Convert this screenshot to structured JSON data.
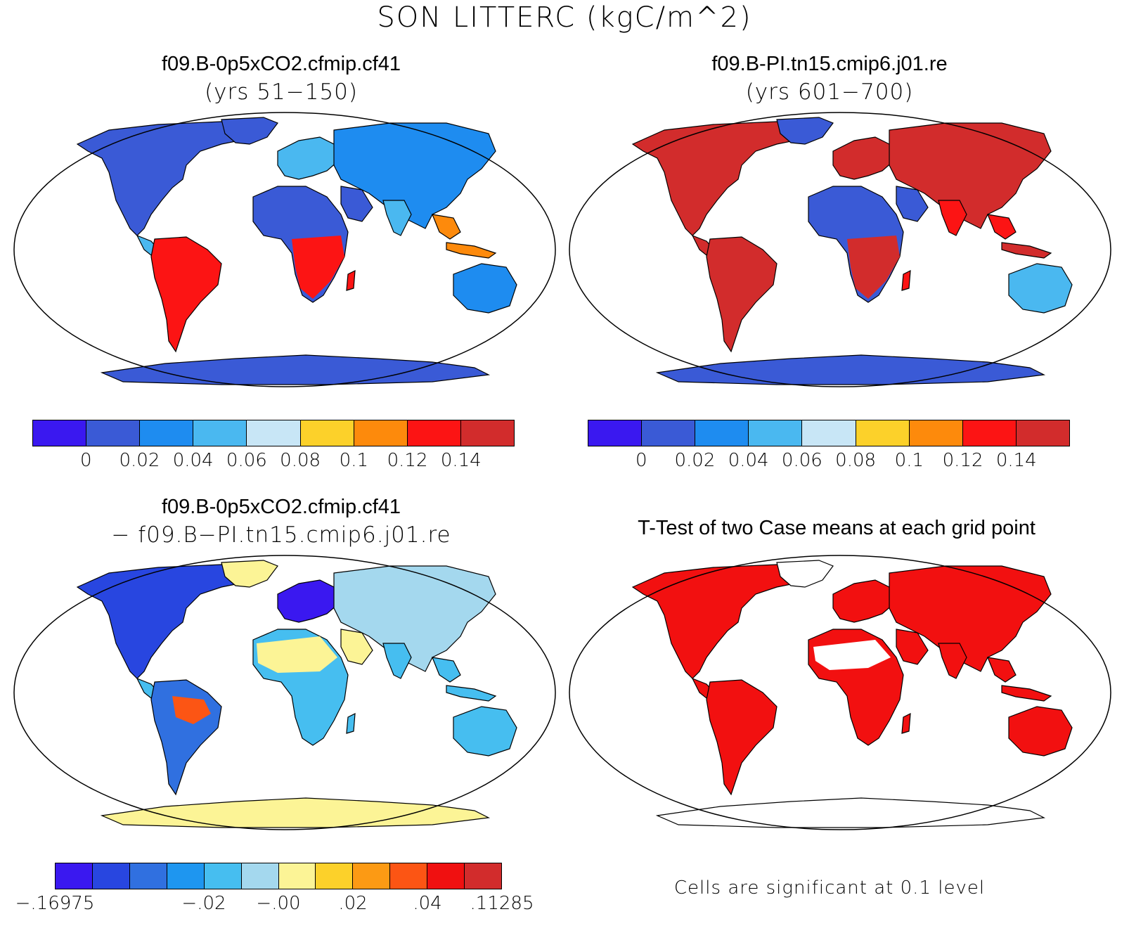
{
  "figure_title": "SON LITTERC (kgC/m^2)",
  "panels": {
    "top_left": {
      "title": "f09.B-0p5xCO2.cfmip.cf41",
      "subtitle": "(yrs 51−150)"
    },
    "top_right": {
      "title": "f09.B-PI.tn15.cmip6.j01.re",
      "subtitle": "(yrs 601−700)"
    },
    "bottom_left": {
      "title": "f09.B-0p5xCO2.cfmip.cf41",
      "subtitle": "− f09.B−PI.tn15.cmip6.j01.re"
    },
    "bottom_right": {
      "title": "T-Test of two Case means at each grid point",
      "footnote": "Cells are significant at 0.1 level"
    }
  },
  "colorbars": {
    "absolute": {
      "colors": [
        "#3a18f0",
        "#3a5ad6",
        "#1e8cf0",
        "#4ab8f0",
        "#c8e6f6",
        "#fcd12a",
        "#fd8a0c",
        "#fc1414",
        "#d22c2c"
      ],
      "labels": [
        "0",
        "0.02",
        "0.04",
        "0.06",
        "0.08",
        "0.1",
        "0.12",
        "0.14"
      ]
    },
    "difference": {
      "colors": [
        "#3a18f0",
        "#2846e0",
        "#3070e0",
        "#1e96f0",
        "#46bef0",
        "#a4d8ee",
        "#fcf496",
        "#fcd12a",
        "#fc9a14",
        "#fc5514",
        "#f01010",
        "#d22c2c"
      ],
      "labels": [
        "−.16975",
        "−.02",
        "−.00",
        ".02",
        ".04",
        ".11285"
      ]
    }
  },
  "map_colors": {
    "ocean": "#ffffff",
    "land_low": "#3a5ad6",
    "land_mid": "#4ab8f0",
    "land_high": "#d22c2c",
    "land_orange": "#fd8a0c",
    "diff_neg": "#3a18f0",
    "diff_light": "#a4d8ee",
    "diff_pos": "#fcf496",
    "ttest_sig": "#f21010"
  }
}
